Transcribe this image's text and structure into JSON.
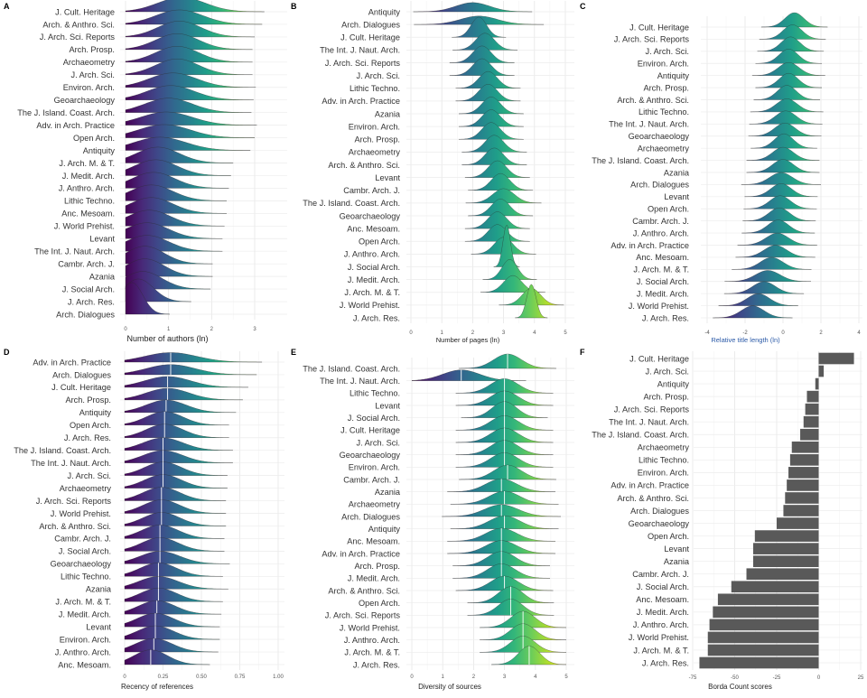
{
  "chart_data": [
    {
      "panel": "A",
      "type": "ridgeline",
      "xlabel": "Number of authors (ln)",
      "xlim": [
        0,
        3.6
      ],
      "ticks": [
        "0",
        "1",
        "2",
        "3"
      ],
      "tick_values": [
        0,
        1,
        2,
        3
      ],
      "rows": [
        "J. Cult. Heritage",
        "Arch. & Anthro. Sci.",
        "J. Arch. Sci. Reports",
        "Arch. Prosp.",
        "Archaeometry",
        "J. Arch. Sci.",
        "Environ. Arch.",
        "Geoarchaeology",
        "The J. Island. Coast. Arch.",
        "Adv. in Arch. Practice",
        "Open Arch.",
        "Antiquity",
        "J. Arch. M. & T.",
        "J. Medit. Arch.",
        "J. Anthro. Arch.",
        "Lithic Techno.",
        "Anc. Mesoam.",
        "J. World Prehist.",
        "Levant",
        "The Int. J. Naut. Arch.",
        "Cambr. Arch. J.",
        "Azania",
        "J. Social Arch.",
        "J. Arch. Res.",
        "Arch. Dialogues"
      ],
      "mean": [
        1.3,
        1.25,
        1.25,
        1.2,
        1.2,
        1.2,
        1.1,
        1.05,
        1.0,
        0.95,
        0.9,
        0.8,
        0.75,
        0.7,
        0.65,
        0.6,
        0.6,
        0.55,
        0.5,
        0.5,
        0.45,
        0.45,
        0.4,
        0.3,
        0.15
      ],
      "sd": [
        0.55,
        0.55,
        0.5,
        0.5,
        0.5,
        0.5,
        0.55,
        0.55,
        0.55,
        0.6,
        0.6,
        0.6,
        0.5,
        0.5,
        0.5,
        0.5,
        0.5,
        0.5,
        0.5,
        0.5,
        0.45,
        0.45,
        0.45,
        0.35,
        0.25
      ]
    },
    {
      "panel": "B",
      "type": "ridgeline",
      "xlabel": "Number of pages (ln)",
      "xlim": [
        0,
        5
      ],
      "ticks": [
        "0",
        "1",
        "2",
        "3",
        "4",
        "5"
      ],
      "tick_values": [
        0,
        1,
        2,
        3,
        4,
        5
      ],
      "rows": [
        "Antiquity",
        "Arch. Dialogues",
        "J. Cult. Heritage",
        "The Int. J. Naut. Arch.",
        "J. Arch. Sci. Reports",
        "J. Arch. Sci.",
        "Lithic Techno.",
        "Adv. in Arch. Practice",
        "Azania",
        "Environ. Arch.",
        "Arch. Prosp.",
        "Archaeometry",
        "Arch. & Anthro. Sci.",
        "Levant",
        "Cambr. Arch. J.",
        "The J. Island. Coast. Arch.",
        "Geoarchaeology",
        "Anc. Mesoam.",
        "Open Arch.",
        "J. Anthro. Arch.",
        "J. Social Arch.",
        "J. Medit. Arch.",
        "J. Arch. M. & T.",
        "J. World Prehist.",
        "J. Arch. Res."
      ],
      "mean": [
        2.0,
        2.2,
        2.2,
        2.4,
        2.3,
        2.3,
        2.5,
        2.5,
        2.6,
        2.6,
        2.6,
        2.7,
        2.7,
        2.8,
        2.9,
        3.0,
        2.9,
        2.8,
        2.8,
        3.0,
        3.1,
        3.2,
        3.3,
        3.9,
        3.9
      ],
      "sd": [
        0.55,
        0.6,
        0.25,
        0.3,
        0.3,
        0.3,
        0.3,
        0.3,
        0.3,
        0.3,
        0.3,
        0.3,
        0.3,
        0.3,
        0.3,
        0.35,
        0.3,
        0.3,
        0.3,
        0.3,
        0.12,
        0.25,
        0.3,
        0.3,
        0.15
      ]
    },
    {
      "panel": "C",
      "type": "ridgeline",
      "xlabel": "Relative title length (ln)",
      "xlim": [
        -4,
        4
      ],
      "ticks": [
        "-4",
        "-2",
        "0",
        "2",
        "4"
      ],
      "tick_values": [
        -4,
        -2,
        0,
        2,
        4
      ],
      "rows": [
        "J. Cult. Heritage",
        "J. Arch. Sci. Reports",
        "J. Arch. Sci.",
        "Environ. Arch.",
        "Antiquity",
        "Arch. Prosp.",
        "Arch. & Anthro. Sci.",
        "Lithic Techno.",
        "The Int. J. Naut. Arch.",
        "Geoarchaeology",
        "Archaeometry",
        "The J. Island. Coast. Arch.",
        "Azania",
        "Arch. Dialogues",
        "Levant",
        "Open Arch.",
        "Cambr. Arch. J.",
        "J. Anthro. Arch.",
        "Adv. in Arch. Practice",
        "Anc. Mesoam.",
        "J. Arch. M. & T.",
        "J. Social Arch.",
        "J. Medit. Arch.",
        "J. World Prehist.",
        "J. Arch. Res."
      ],
      "mean": [
        0.6,
        0.5,
        0.4,
        0.3,
        0.3,
        0.3,
        0.2,
        0.2,
        0.15,
        0.1,
        0.05,
        0.0,
        0.0,
        -0.1,
        -0.1,
        -0.15,
        -0.2,
        -0.25,
        -0.3,
        -0.4,
        -0.6,
        -0.8,
        -1.0,
        -1.3,
        -1.6
      ],
      "sd": [
        0.5,
        0.5,
        0.5,
        0.5,
        0.55,
        0.5,
        0.5,
        0.55,
        0.55,
        0.55,
        0.5,
        0.55,
        0.55,
        0.6,
        0.55,
        0.55,
        0.55,
        0.55,
        0.6,
        0.6,
        0.6,
        0.65,
        0.6,
        0.6,
        0.6
      ]
    },
    {
      "panel": "D",
      "type": "ridgeline",
      "xlabel": "Recency of references",
      "xlim": [
        0,
        1
      ],
      "ticks": [
        "0",
        "0.25",
        "0.50",
        "0.75",
        "1.00"
      ],
      "tick_values": [
        0,
        0.25,
        0.5,
        0.75,
        1
      ],
      "rows": [
        "Adv. in Arch. Practice",
        "Arch. Dialogues",
        "J. Cult. Heritage",
        "Arch. Prosp.",
        "Antiquity",
        "Open Arch.",
        "J. Arch. Res.",
        "The J. Island. Coast. Arch.",
        "The Int. J. Naut. Arch.",
        "J. Arch. Sci.",
        "Archaeometry",
        "J. Arch. Sci. Reports",
        "J. World Prehist.",
        "Arch. & Anthro. Sci.",
        "Cambr. Arch. J.",
        "J. Social Arch.",
        "Geoarchaeology",
        "Lithic Techno.",
        "Azania",
        "J. Arch. M. & T.",
        "J. Medit. Arch.",
        "Levant",
        "Environ. Arch.",
        "J. Anthro. Arch.",
        "Anc. Mesoam."
      ],
      "mean": [
        0.3,
        0.3,
        0.28,
        0.28,
        0.27,
        0.26,
        0.26,
        0.25,
        0.25,
        0.25,
        0.25,
        0.24,
        0.24,
        0.24,
        0.23,
        0.23,
        0.23,
        0.22,
        0.22,
        0.22,
        0.21,
        0.2,
        0.2,
        0.19,
        0.17
      ],
      "sd": [
        0.17,
        0.16,
        0.15,
        0.14,
        0.13,
        0.12,
        0.12,
        0.13,
        0.13,
        0.12,
        0.12,
        0.12,
        0.12,
        0.12,
        0.12,
        0.12,
        0.13,
        0.12,
        0.13,
        0.12,
        0.12,
        0.12,
        0.12,
        0.12,
        0.11
      ]
    },
    {
      "panel": "E",
      "type": "ridgeline",
      "xlabel": "Diversity of sources",
      "xlim": [
        0,
        5
      ],
      "ticks": [
        "0",
        "1",
        "2",
        "3",
        "4",
        "5"
      ],
      "tick_values": [
        0,
        1,
        2,
        3,
        4,
        5
      ],
      "rows": [
        "The J. Island. Coast. Arch.",
        "The Int. J. Naut. Arch.",
        "Lithic Techno.",
        "Levant",
        "J. Social Arch.",
        "J. Cult. Heritage",
        "J. Arch. Sci.",
        "Geoarchaeology",
        "Environ. Arch.",
        "Cambr. Arch. J.",
        "Azania",
        "Archaeometry",
        "Arch. Dialogues",
        "Antiquity",
        "Anc. Mesoam.",
        "Adv. in Arch. Practice",
        "Arch. Prosp.",
        "J. Medit. Arch.",
        "Arch. & Anthro. Sci.",
        "Open Arch.",
        "J. Arch. Sci. Reports",
        "J. World Prehist.",
        "J. Anthro. Arch.",
        "J. Arch. M. & T.",
        "J. Arch. Res."
      ],
      "mean": [
        3.1,
        1.6,
        3.0,
        3.0,
        3.0,
        3.0,
        3.0,
        3.0,
        3.0,
        3.1,
        2.9,
        3.0,
        2.9,
        3.0,
        2.9,
        2.9,
        2.9,
        2.9,
        3.0,
        3.2,
        3.2,
        3.6,
        3.6,
        3.6,
        3.8
      ],
      "sd": [
        0.45,
        0.6,
        0.45,
        0.45,
        0.4,
        0.45,
        0.45,
        0.45,
        0.45,
        0.45,
        0.5,
        0.5,
        0.55,
        0.5,
        0.5,
        0.5,
        0.45,
        0.45,
        0.45,
        0.4,
        0.4,
        0.4,
        0.4,
        0.4,
        0.35
      ]
    },
    {
      "panel": "F",
      "type": "bar",
      "orientation": "horizontal",
      "xlabel": "Borda Count scores",
      "xlim": [
        -75,
        25
      ],
      "ticks": [
        "-75",
        "-50",
        "-25",
        "0",
        "25"
      ],
      "tick_values": [
        -75,
        -50,
        -25,
        0,
        25
      ],
      "categories": [
        "J. Cult. Heritage",
        "J. Arch. Sci.",
        "Antiquity",
        "Arch. Prosp.",
        "J. Arch. Sci. Reports",
        "The Int. J. Naut. Arch.",
        "The J. Island. Coast. Arch.",
        "Archaeometry",
        "Lithic Techno.",
        "Environ. Arch.",
        "Adv. in Arch. Practice",
        "Arch. & Anthro. Sci.",
        "Arch. Dialogues",
        "Geoarchaeology",
        "Open Arch.",
        "Levant",
        "Azania",
        "Cambr. Arch. J.",
        "J. Social Arch.",
        "Anc. Mesoam.",
        "J. Medit. Arch.",
        "J. Anthro. Arch.",
        "J. World Prehist.",
        "J. Arch. M. & T.",
        "J. Arch. Res."
      ],
      "values": [
        21,
        3,
        -2,
        -7,
        -8,
        -9,
        -11,
        -16,
        -17,
        -18,
        -19,
        -20,
        -21,
        -25,
        -38,
        -39,
        -39,
        -43,
        -52,
        -60,
        -63,
        -65,
        -66,
        -66,
        -71
      ],
      "bar_color": "#595959"
    }
  ],
  "palette": [
    "#440154",
    "#482878",
    "#3e4989",
    "#31688e",
    "#26828e",
    "#1f9e89",
    "#35b779",
    "#6ece58",
    "#b5de2b",
    "#fde725"
  ]
}
